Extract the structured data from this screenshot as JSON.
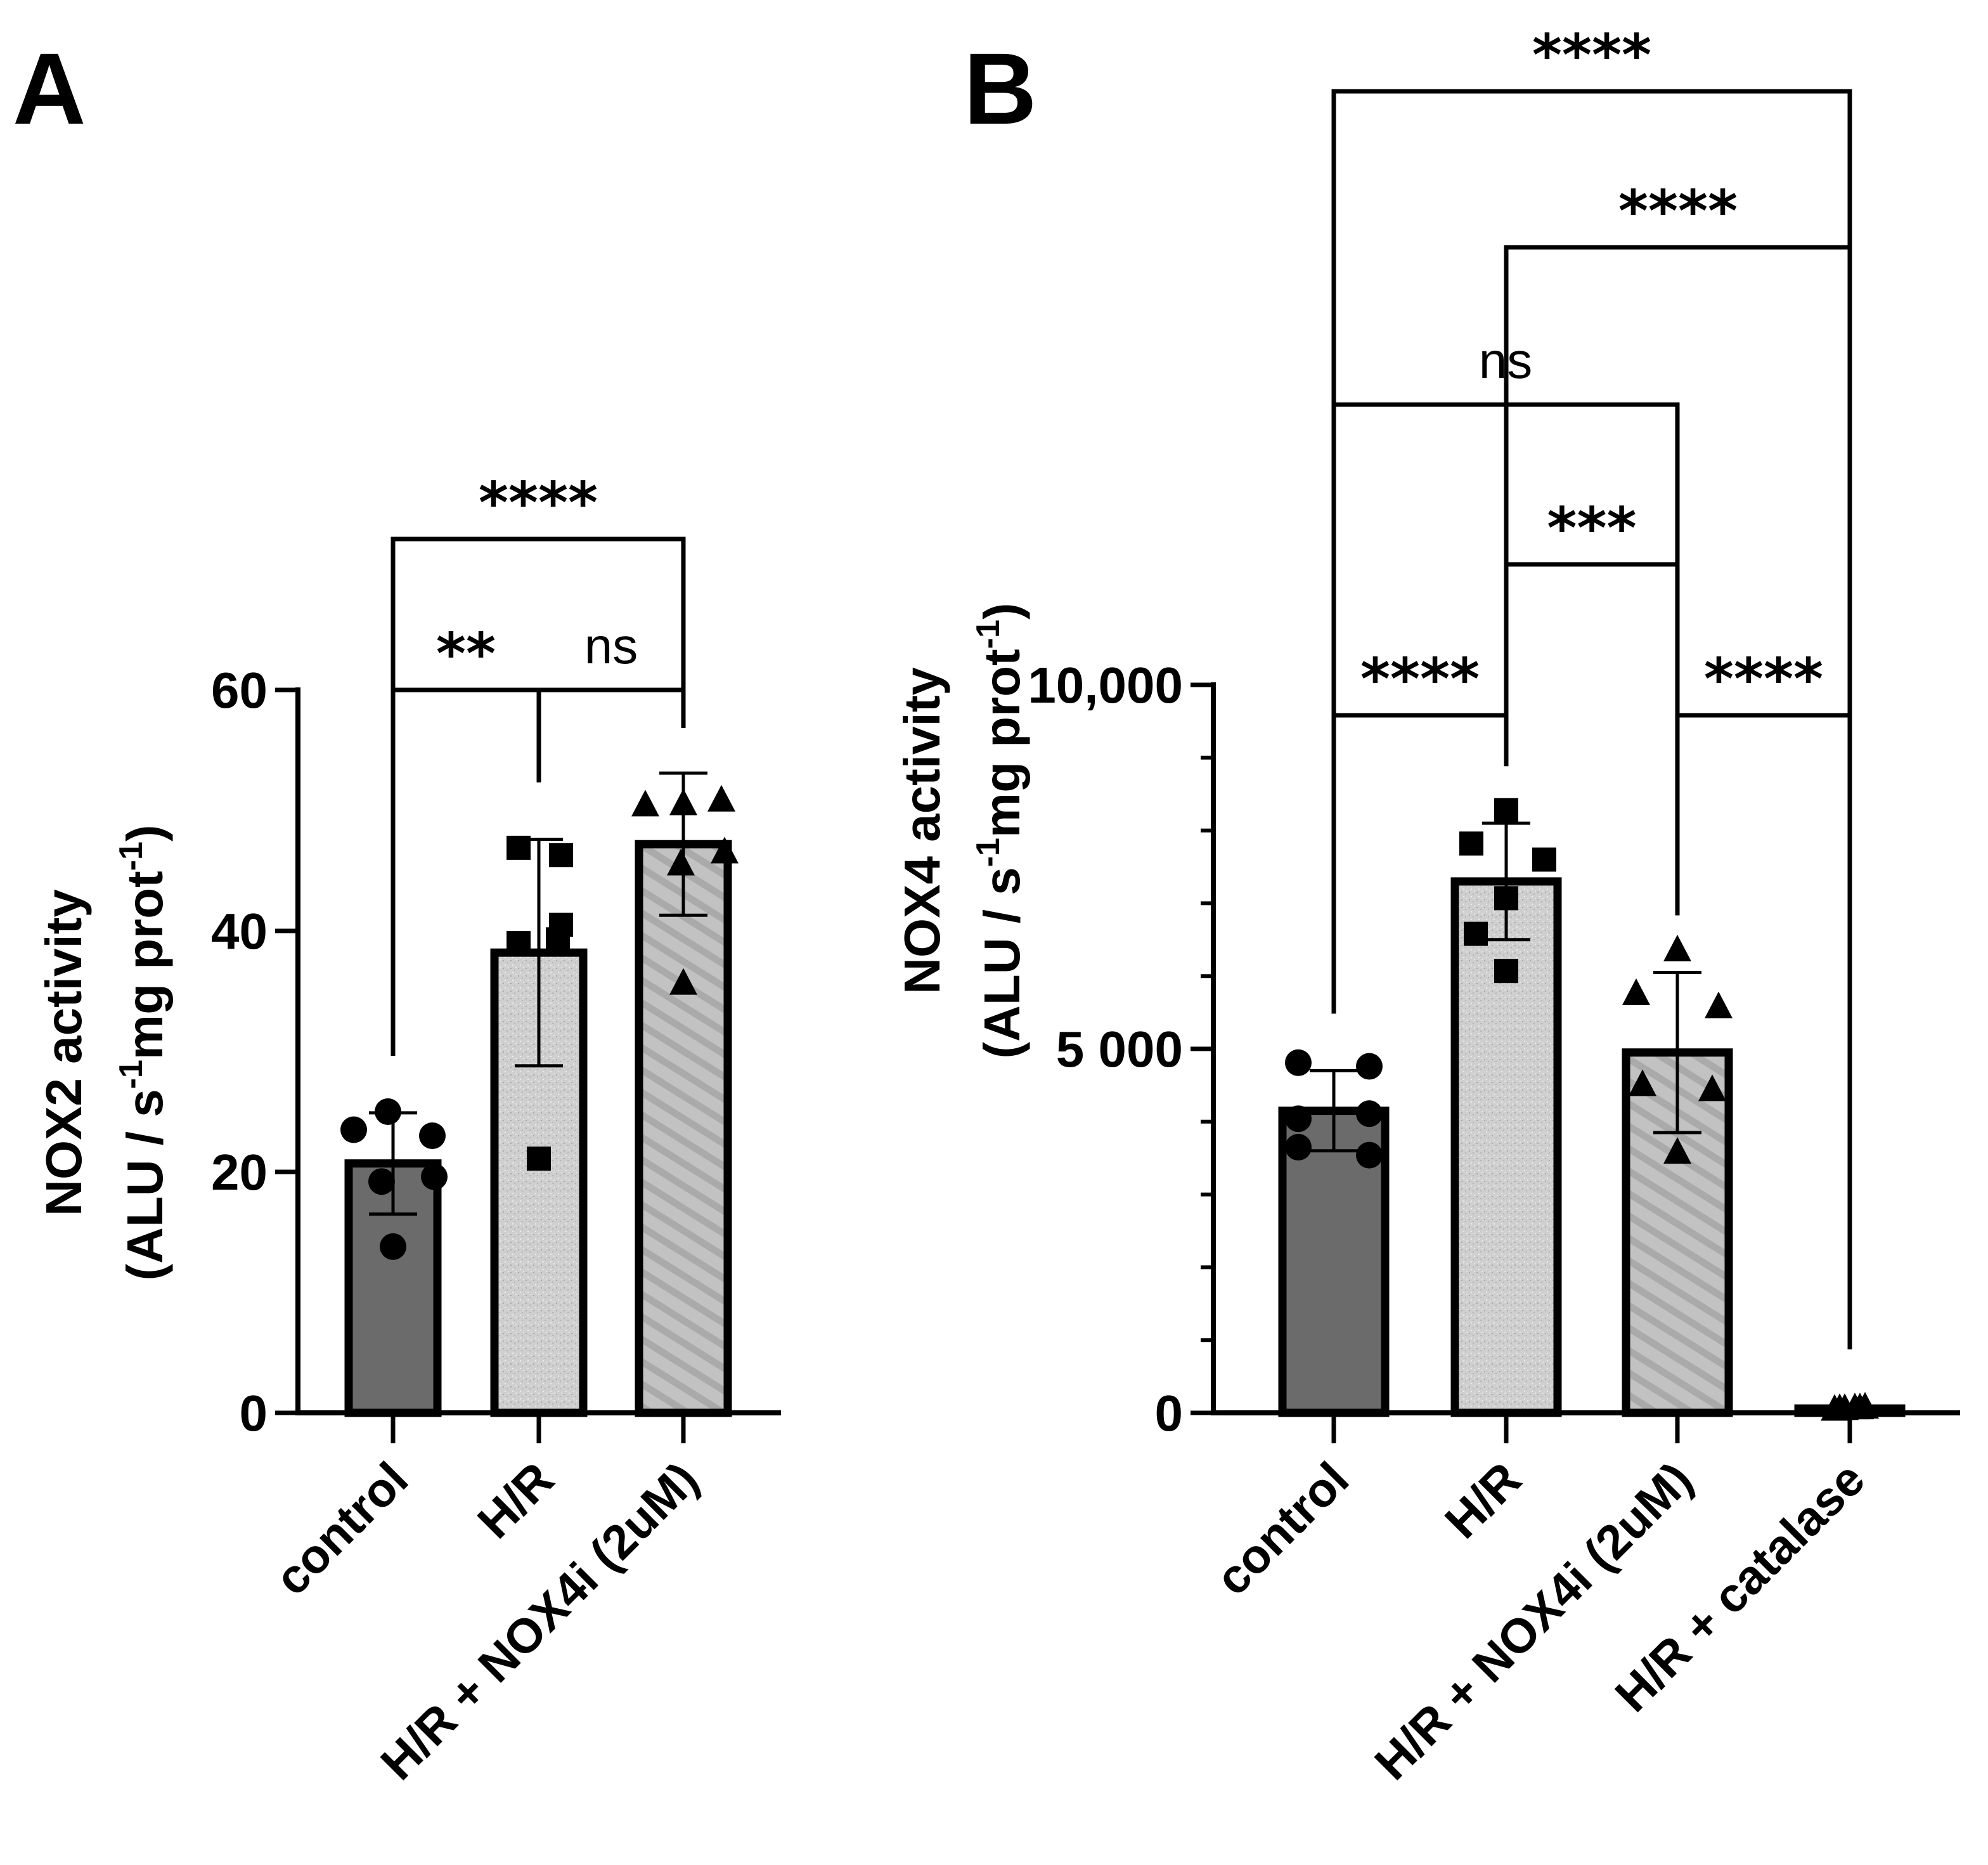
{
  "chart_data": [
    {
      "type": "bar",
      "panel": "A",
      "ylabel_line1": "NOX2 activity",
      "ylabel_line2_pre": "(ALU / s",
      "ylabel_sup1": "-1",
      "ylabel_line2_mid": "mg prot",
      "ylabel_sup2": "-1",
      "ylabel_line2_post": ")",
      "ylim": [
        0,
        60
      ],
      "yticks": [
        0,
        20,
        40,
        60
      ],
      "ytick_labels": [
        "0",
        "20",
        "40",
        "60"
      ],
      "categories": [
        "control",
        "H/R",
        "H/R + NOX4i (2uM)"
      ],
      "means": [
        20.7,
        38.2,
        47.2
      ],
      "sd": [
        4.2,
        9.4,
        5.9
      ],
      "points": [
        [
          25,
          23.5,
          23,
          19.6,
          19.2,
          13.8
        ],
        [
          46.9,
          46.3,
          40.5,
          39.3,
          39,
          21.1
        ],
        [
          50.4,
          50.8,
          50.5,
          46.5,
          45.5,
          35.6
        ]
      ],
      "markers": [
        "circle",
        "square",
        "triangle"
      ],
      "fills": [
        "#6b6b6b",
        "#c9c9c9",
        "#bdbdbd"
      ],
      "comparisons": [
        {
          "from": 0,
          "to": 1,
          "label": "**"
        },
        {
          "from": 1,
          "to": 2,
          "label": "ns"
        },
        {
          "from": 0,
          "to": 2,
          "label": "****"
        }
      ]
    },
    {
      "type": "bar",
      "panel": "B",
      "ylabel_line1": "NOX4 activity",
      "ylabel_line2_pre": "(ALU / s",
      "ylabel_sup1": "-1",
      "ylabel_line2_mid": "mg prot",
      "ylabel_sup2": "-1",
      "ylabel_line2_post": ")",
      "ylim": [
        0,
        10000
      ],
      "yticks": [
        0,
        5000,
        10000
      ],
      "ytick_labels": [
        "0",
        "5 000",
        "10,000"
      ],
      "categories": [
        "control",
        "H/R",
        "H/R + NOX4i (2uM)",
        "H/R + catalase"
      ],
      "means": [
        4150,
        7300,
        4950,
        60
      ],
      "sd": [
        550,
        800,
        1100,
        30
      ],
      "points": [
        [
          4810,
          4760,
          4110,
          4040,
          3650,
          3540
        ],
        [
          8280,
          7820,
          7600,
          7070,
          6580,
          6070
        ],
        [
          6350,
          5750,
          5570,
          4500,
          4430,
          3570
        ],
        [
          40,
          50,
          60,
          70,
          60,
          50
        ]
      ],
      "markers": [
        "circle",
        "square",
        "triangle",
        "triangle"
      ],
      "fills": [
        "#6b6b6b",
        "#c9c9c9",
        "#bdbdbd",
        "#444444"
      ],
      "comparisons": [
        {
          "from": 0,
          "to": 1,
          "label": "****"
        },
        {
          "from": 2,
          "to": 3,
          "label": "****"
        },
        {
          "from": 1,
          "to": 2,
          "label": "***"
        },
        {
          "from": 0,
          "to": 2,
          "label": "ns"
        },
        {
          "from": 1,
          "to": 3,
          "label": "****"
        },
        {
          "from": 0,
          "to": 3,
          "label": "****"
        }
      ]
    }
  ]
}
